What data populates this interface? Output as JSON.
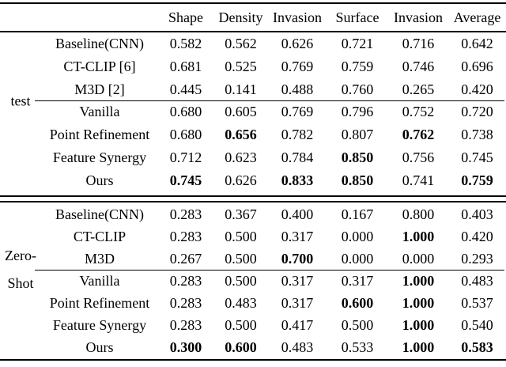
{
  "table": {
    "columns": [
      "Shape",
      "Density",
      "Invasion",
      "Surface",
      "Invasion",
      "Average"
    ],
    "colors": {
      "text": "#000000",
      "background": "#ffffff",
      "rule": "#000000"
    },
    "sections": [
      {
        "group_label": "test",
        "group_label_lines": [
          "test"
        ],
        "midrule_after_row": 2,
        "rows": [
          {
            "method": "Baseline(CNN)",
            "values": [
              "0.582",
              "0.562",
              "0.626",
              "0.721",
              "0.716",
              "0.642"
            ],
            "bold": []
          },
          {
            "method": "CT-CLIP [6]",
            "values": [
              "0.681",
              "0.525",
              "0.769",
              "0.759",
              "0.746",
              "0.696"
            ],
            "bold": []
          },
          {
            "method": "M3D [2]",
            "values": [
              "0.445",
              "0.141",
              "0.488",
              "0.760",
              "0.265",
              "0.420"
            ],
            "bold": []
          },
          {
            "method": "Vanilla",
            "values": [
              "0.680",
              "0.605",
              "0.769",
              "0.796",
              "0.752",
              "0.720"
            ],
            "bold": []
          },
          {
            "method": "Point Refinement",
            "values": [
              "0.680",
              "0.656",
              "0.782",
              "0.807",
              "0.762",
              "0.738"
            ],
            "bold": [
              1,
              4
            ]
          },
          {
            "method": "Feature Synergy",
            "values": [
              "0.712",
              "0.623",
              "0.784",
              "0.850",
              "0.756",
              "0.745"
            ],
            "bold": [
              3
            ]
          },
          {
            "method": "Ours",
            "values": [
              "0.745",
              "0.626",
              "0.833",
              "0.850",
              "0.741",
              "0.759"
            ],
            "bold": [
              0,
              2,
              3,
              5
            ]
          }
        ]
      },
      {
        "group_label": "Zero-Shot",
        "group_label_lines": [
          "Zero-",
          "Shot"
        ],
        "midrule_after_row": 2,
        "rows": [
          {
            "method": "Baseline(CNN)",
            "values": [
              "0.283",
              "0.367",
              "0.400",
              "0.167",
              "0.800",
              "0.403"
            ],
            "bold": []
          },
          {
            "method": "CT-CLIP",
            "values": [
              "0.283",
              "0.500",
              "0.317",
              "0.000",
              "1.000",
              "0.420"
            ],
            "bold": [
              4
            ]
          },
          {
            "method": "M3D",
            "values": [
              "0.267",
              "0.500",
              "0.700",
              "0.000",
              "0.000",
              "0.293"
            ],
            "bold": [
              2
            ]
          },
          {
            "method": "Vanilla",
            "values": [
              "0.283",
              "0.500",
              "0.317",
              "0.317",
              "1.000",
              "0.483"
            ],
            "bold": [
              4
            ]
          },
          {
            "method": "Point Refinement",
            "values": [
              "0.283",
              "0.483",
              "0.317",
              "0.600",
              "1.000",
              "0.537"
            ],
            "bold": [
              3,
              4
            ]
          },
          {
            "method": "Feature Synergy",
            "values": [
              "0.283",
              "0.500",
              "0.417",
              "0.500",
              "1.000",
              "0.540"
            ],
            "bold": [
              4
            ]
          },
          {
            "method": "Ours",
            "values": [
              "0.300",
              "0.600",
              "0.483",
              "0.533",
              "1.000",
              "0.583"
            ],
            "bold": [
              0,
              1,
              4,
              5
            ]
          }
        ]
      }
    ]
  }
}
